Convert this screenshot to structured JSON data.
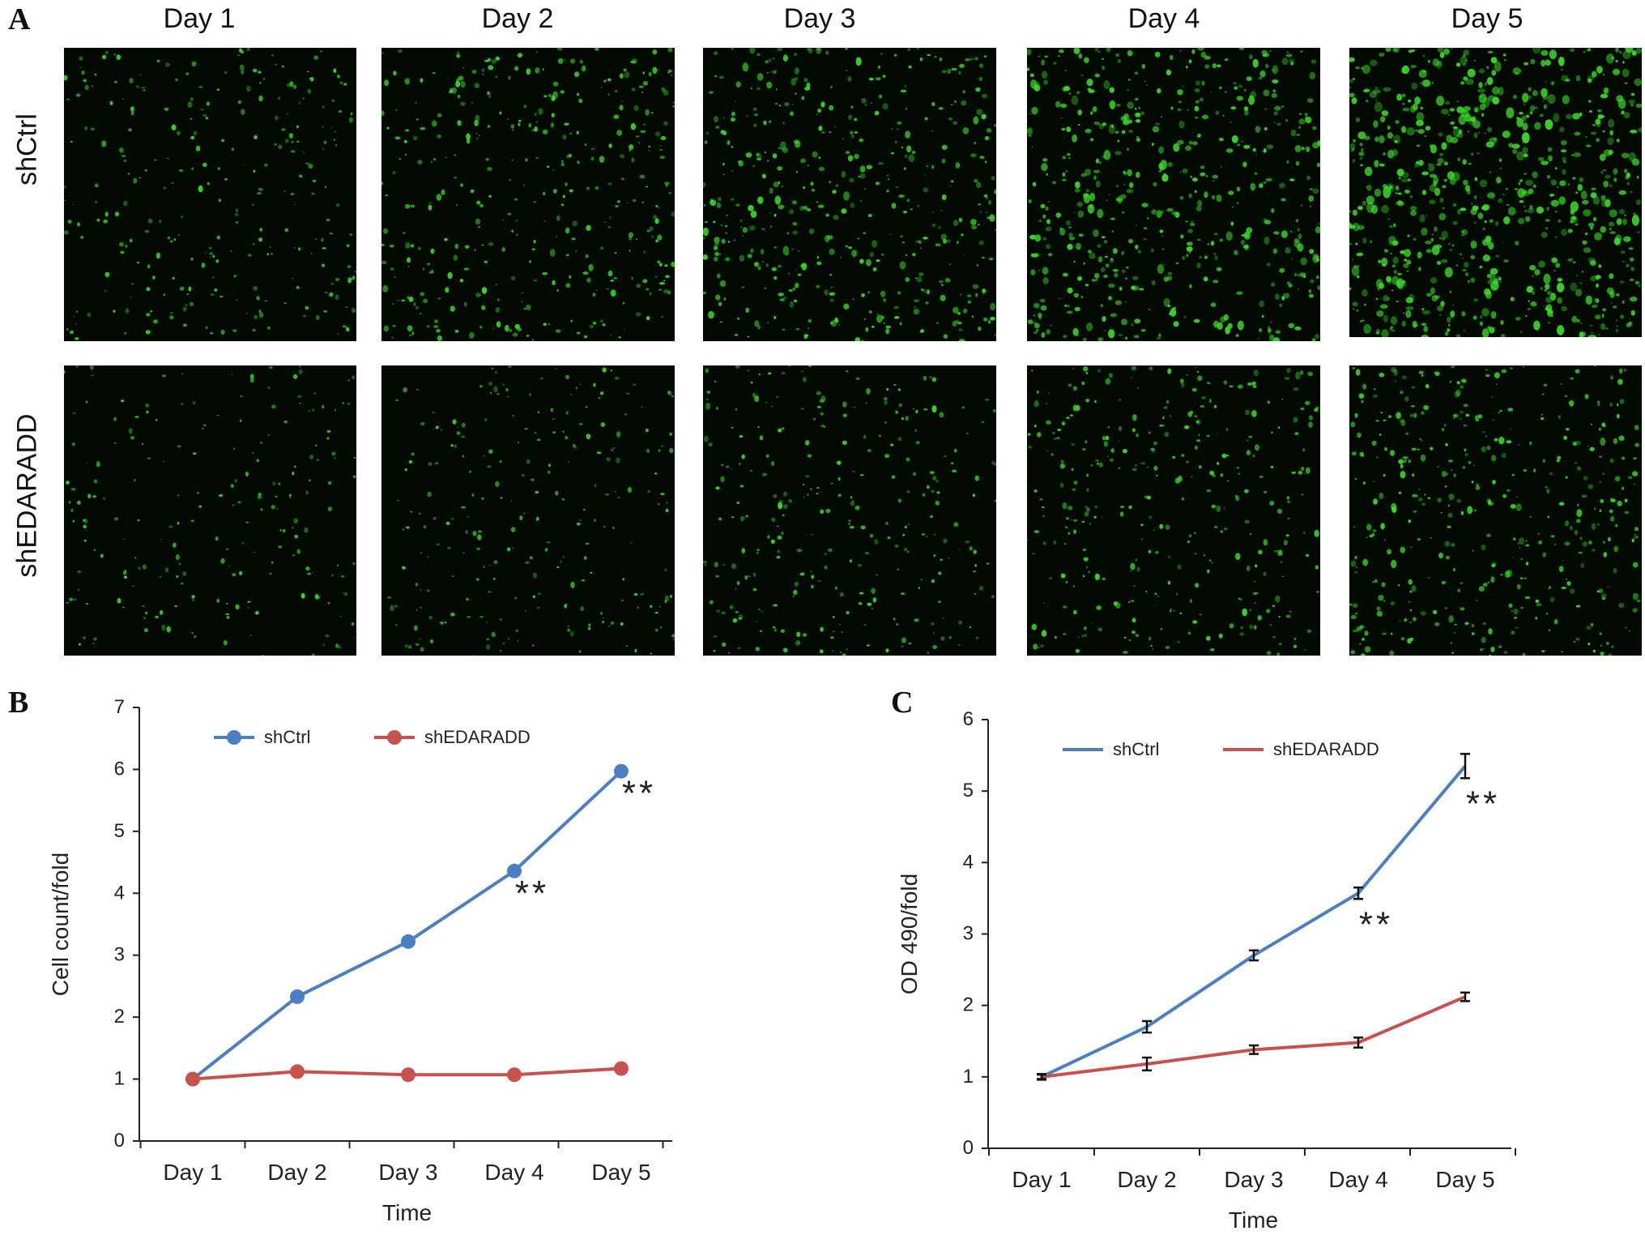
{
  "panel_a": {
    "letter": "A",
    "columns": [
      "Day 1",
      "Day 2",
      "Day 3",
      "Day 4",
      "Day 5"
    ],
    "rows": [
      "shCtrl",
      "shEDARADD"
    ],
    "colors": {
      "fluorescence": "#3ddc2a",
      "background": "#020a02"
    },
    "density": [
      [
        0.18,
        0.3,
        0.4,
        0.5,
        0.72
      ],
      [
        0.1,
        0.14,
        0.2,
        0.26,
        0.34
      ]
    ]
  },
  "chart_data": [
    {
      "panel": "B",
      "type": "line",
      "categories": [
        "Day 1",
        "Day 2",
        "Day 3",
        "Day 4",
        "Day 5"
      ],
      "series": [
        {
          "name": "shCtrl",
          "values": [
            1.0,
            2.33,
            3.22,
            4.36,
            5.97
          ],
          "color": "#4a7fc1",
          "marker": "circle"
        },
        {
          "name": "shEDARADD",
          "values": [
            1.0,
            1.12,
            1.07,
            1.07,
            1.17
          ],
          "color": "#c8504d",
          "marker": "circle"
        }
      ],
      "annotations": [
        {
          "category": "Day 4",
          "text": "**"
        },
        {
          "category": "Day 5",
          "text": "**"
        }
      ],
      "xlabel": "Time",
      "ylabel": "Cell count/fold",
      "ylim": [
        0,
        7
      ],
      "yticks": [
        "0",
        "1",
        "2",
        "3",
        "4",
        "5",
        "6",
        "7"
      ],
      "legend": "top",
      "grid": false
    },
    {
      "panel": "C",
      "type": "line",
      "categories": [
        "Day 1",
        "Day 2",
        "Day 3",
        "Day 4",
        "Day 5"
      ],
      "series": [
        {
          "name": "shCtrl",
          "values": [
            1.0,
            1.7,
            2.7,
            3.57,
            5.35
          ],
          "errors": [
            0.04,
            0.08,
            0.07,
            0.08,
            0.17
          ],
          "color": "#4a7fc1"
        },
        {
          "name": "shEDARADD",
          "values": [
            1.0,
            1.18,
            1.38,
            1.48,
            2.12
          ],
          "errors": [
            0.03,
            0.09,
            0.06,
            0.07,
            0.06
          ],
          "color": "#c8504d"
        }
      ],
      "annotations": [
        {
          "category": "Day 4",
          "text": "**"
        },
        {
          "category": "Day 5",
          "text": "**"
        }
      ],
      "xlabel": "Time",
      "ylabel": "OD 490/fold",
      "ylim": [
        0,
        6
      ],
      "yticks": [
        "0",
        "1",
        "2",
        "3",
        "4",
        "5",
        "6"
      ],
      "legend": "top",
      "grid": false
    }
  ]
}
